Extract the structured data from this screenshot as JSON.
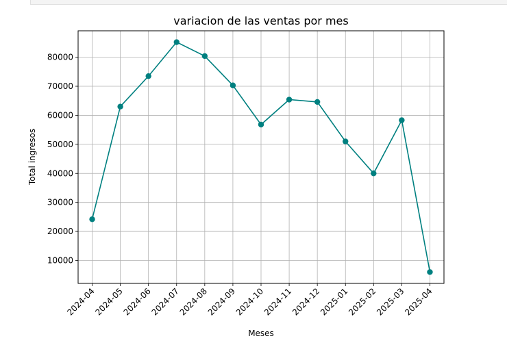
{
  "chart_data": {
    "type": "line",
    "title": "variacion de las ventas por mes",
    "xlabel": "Meses",
    "ylabel": "Total ingresos",
    "categories": [
      "2024-04",
      "2024-05",
      "2024-06",
      "2024-07",
      "2024-08",
      "2024-09",
      "2024-10",
      "2024-11",
      "2024-12",
      "2025-01",
      "2025-02",
      "2025-03",
      "2025-04"
    ],
    "values": [
      24200,
      63000,
      73500,
      85200,
      80400,
      70300,
      56800,
      65400,
      64600,
      51000,
      40000,
      58300,
      6000
    ],
    "yticks": [
      10000,
      20000,
      30000,
      40000,
      50000,
      60000,
      70000,
      80000
    ],
    "ylim": [
      2100,
      89100
    ],
    "grid": true,
    "marker": "circle",
    "color": "#008080"
  }
}
